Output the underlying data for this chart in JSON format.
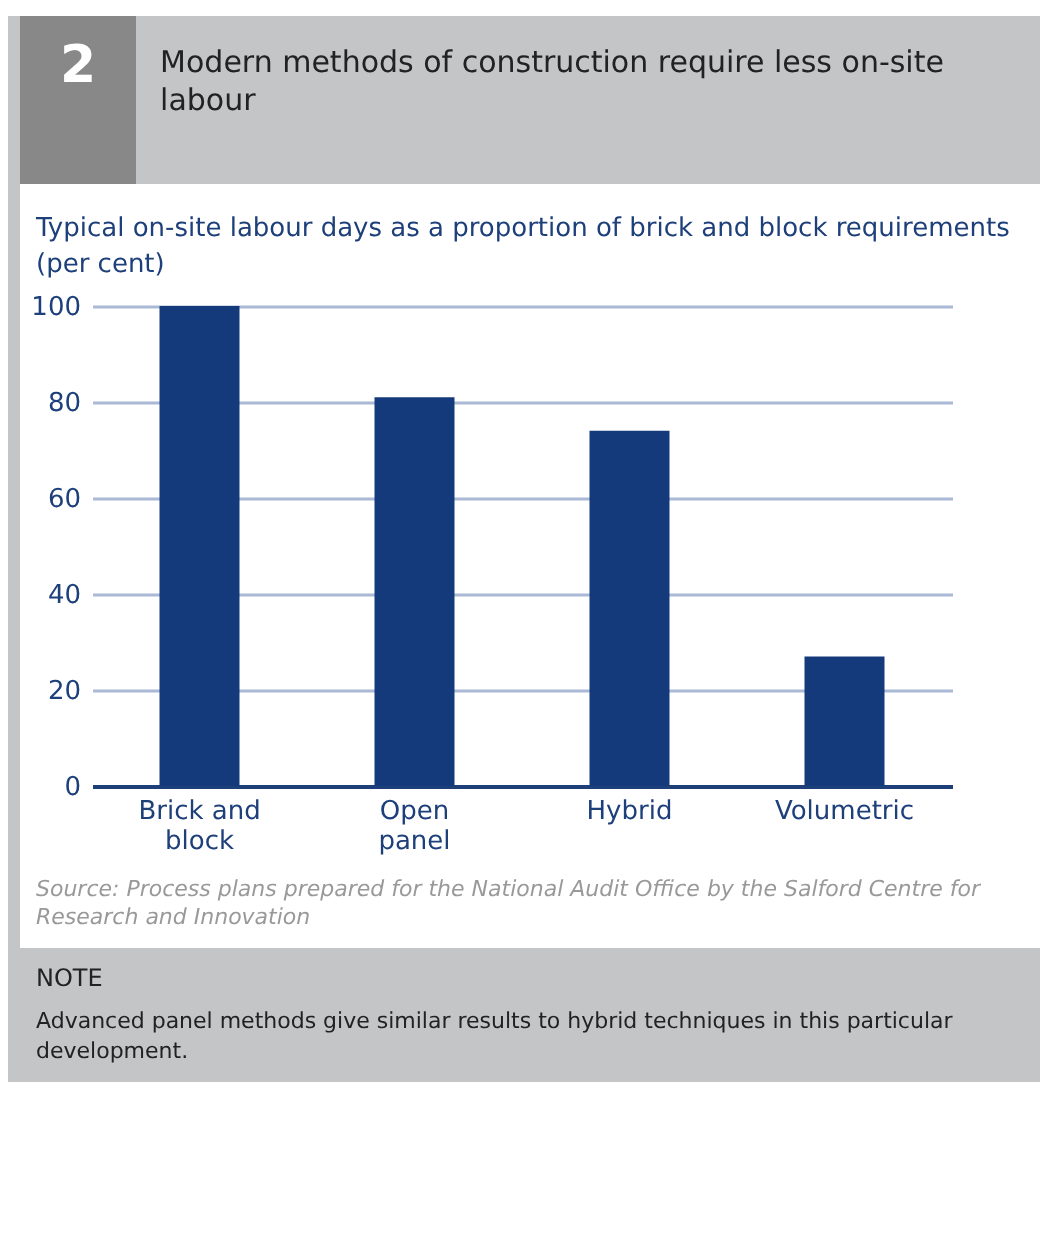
{
  "chart_data": {
    "type": "bar",
    "title": "Modern methods of construction require less on-site labour",
    "subtitle": "Typical on-site labour days as a proportion of brick and block requirements (per cent)",
    "categories": [
      "Brick and block",
      "Open panel",
      "Hybrid",
      "Volumetric"
    ],
    "values": [
      100,
      81,
      74,
      27
    ],
    "color": "#143a7b",
    "ylim": [
      0,
      100
    ],
    "yticks": [
      0,
      20,
      40,
      60,
      80,
      100
    ],
    "grid": "y",
    "annotations": [
      "2",
      "Source: Process plans prepared for the National Audit Office by the Salford Centre for Research and Innovation",
      "NOTE",
      "Advanced panel methods give similar results to hybrid techniques in this particular development."
    ]
  }
}
